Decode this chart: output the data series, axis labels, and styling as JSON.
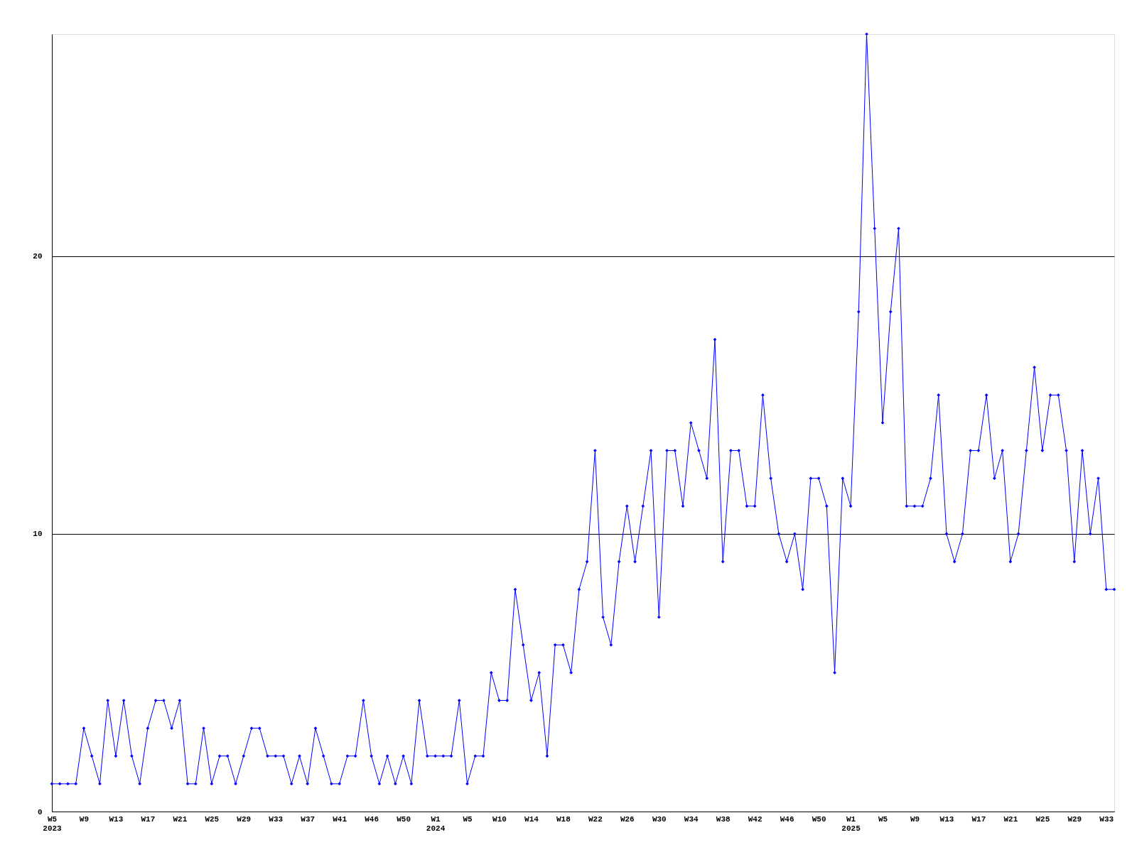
{
  "chart_data": {
    "type": "line",
    "categories": [
      "W5\n2023",
      null,
      null,
      null,
      "W9",
      null,
      null,
      null,
      "W13",
      null,
      null,
      null,
      "W17",
      null,
      null,
      null,
      "W21",
      null,
      null,
      null,
      "W25",
      null,
      null,
      null,
      "W29",
      null,
      null,
      null,
      "W33",
      null,
      null,
      null,
      "W37",
      null,
      null,
      null,
      "W41",
      null,
      null,
      null,
      "W46",
      null,
      null,
      null,
      "W50",
      null,
      null,
      null,
      "W1\n2024",
      null,
      null,
      null,
      "W5",
      null,
      null,
      null,
      "W10",
      null,
      null,
      null,
      "W14",
      null,
      null,
      null,
      "W18",
      null,
      null,
      null,
      "W22",
      null,
      null,
      null,
      "W26",
      null,
      null,
      null,
      "W30",
      null,
      null,
      null,
      "W34",
      null,
      null,
      null,
      "W38",
      null,
      null,
      null,
      "W42",
      null,
      null,
      null,
      "W46",
      null,
      null,
      null,
      "W50",
      null,
      null,
      null,
      "W1\n2025",
      null,
      null,
      null,
      "W5",
      null,
      null,
      null,
      "W9",
      null,
      null,
      null,
      "W13",
      null,
      null,
      null,
      "W17",
      null,
      null,
      null,
      "W21",
      null,
      null,
      null,
      "W25",
      null,
      null,
      null,
      "W29",
      null,
      null,
      null,
      "W33",
      null
    ],
    "series": [
      {
        "color": "#0000ff",
        "values": [
          1,
          1,
          1,
          1,
          3,
          2,
          1,
          4,
          2,
          4,
          2,
          1,
          3,
          4,
          4,
          3,
          4,
          1,
          1,
          3,
          1,
          2,
          2,
          1,
          2,
          3,
          3,
          2,
          2,
          2,
          1,
          2,
          1,
          3,
          2,
          1,
          1,
          2,
          2,
          4,
          2,
          1,
          2,
          1,
          2,
          1,
          4,
          2,
          2,
          2,
          2,
          4,
          1,
          2,
          2,
          5,
          4,
          4,
          8,
          6,
          4,
          5,
          2,
          6,
          6,
          5,
          8,
          9,
          13,
          7,
          6,
          9,
          11,
          9,
          11,
          13,
          7,
          13,
          13,
          11,
          14,
          13,
          12,
          17,
          9,
          13,
          13,
          11,
          11,
          15,
          12,
          10,
          9,
          10,
          8,
          12,
          12,
          11,
          5,
          12,
          11,
          18,
          28,
          21,
          14,
          18,
          21,
          11,
          11,
          11,
          12,
          15,
          10,
          9,
          10,
          13,
          13,
          15,
          12,
          13,
          9,
          10,
          13,
          16,
          13,
          15,
          15,
          13,
          9,
          13,
          10,
          12,
          8,
          8
        ]
      }
    ],
    "ylim": [
      0,
      28
    ],
    "yticks": [
      0,
      10,
      20
    ],
    "grid": "y",
    "marker": "diamond",
    "line_style": "solid"
  }
}
